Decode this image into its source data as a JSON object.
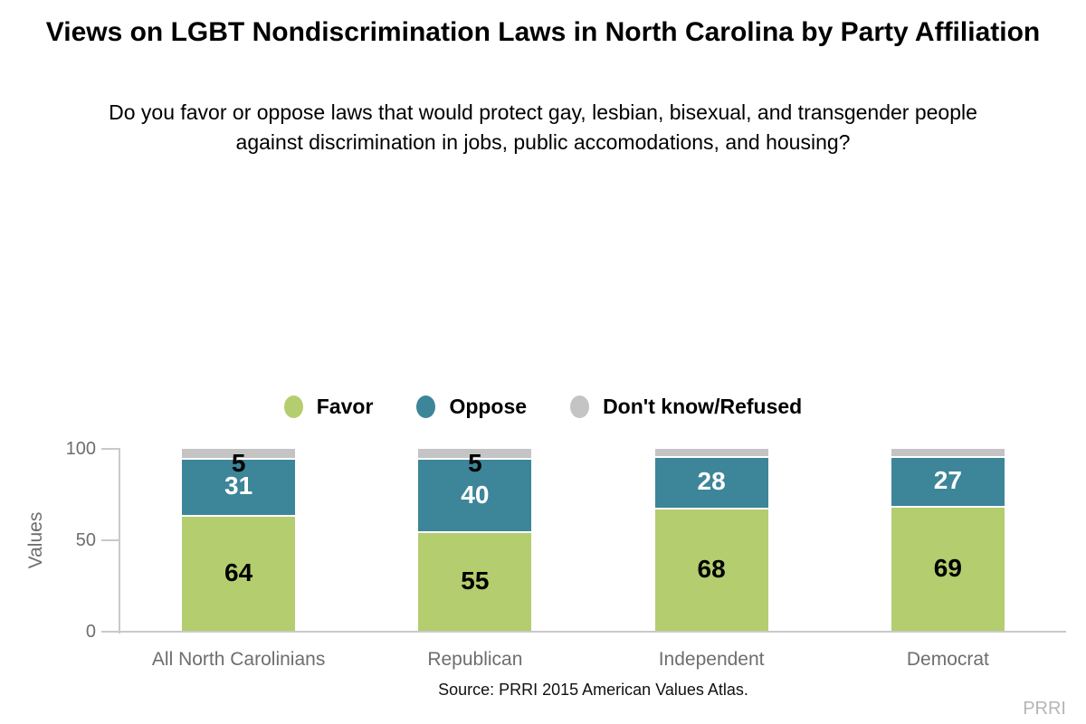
{
  "chart_data": {
    "type": "bar",
    "stacked": true,
    "title": "Views on LGBT Nondiscrimination Laws in North Carolina by Party Affiliation",
    "subtitle": "Do you favor or oppose laws that would protect gay, lesbian, bisexual, and transgender people against discrimination in jobs, public accomodations, and housing?",
    "categories": [
      "All North Carolinians",
      "Republican",
      "Independent",
      "Democrat"
    ],
    "series": [
      {
        "name": "Favor",
        "color": "#b4cd6e",
        "label_color": "#000000",
        "values": [
          64,
          55,
          68,
          69
        ],
        "value_labels": [
          "64",
          "55",
          "68",
          "69"
        ]
      },
      {
        "name": "Oppose",
        "color": "#3d8599",
        "label_color": "#ffffff",
        "values": [
          31,
          40,
          28,
          27
        ],
        "value_labels": [
          "31",
          "40",
          "28",
          "27"
        ]
      },
      {
        "name": "Don't know/Refused",
        "color": "#c4c4c4",
        "label_color": "#000000",
        "values": [
          5,
          5,
          4,
          4
        ],
        "value_labels": [
          "5",
          "5",
          "",
          ""
        ]
      }
    ],
    "ylabel": "Values",
    "yticks": [
      0,
      50,
      100
    ],
    "ylim": [
      0,
      100
    ],
    "grid": false,
    "legend_position": "top",
    "axis_color": "#c9c9c9",
    "tick_text_color": "#6e6e6e",
    "source": "Source: PRRI 2015 American Values Atlas.",
    "watermark": "PRRI"
  }
}
